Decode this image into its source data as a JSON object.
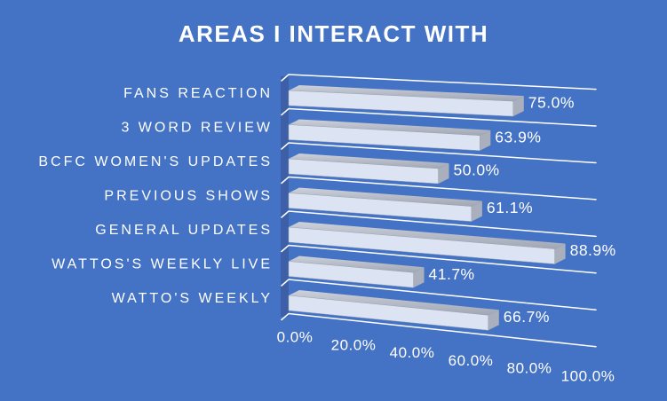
{
  "chart_data": {
    "type": "bar",
    "orientation": "horizontal-3d",
    "title": "AREAS I INTERACT WITH",
    "categories": [
      "FANS REACTION",
      "3 WORD REVIEW",
      "BCFC WOMEN'S UPDATES",
      "PREVIOUS SHOWS",
      "GENERAL UPDATES",
      "WATTOS'S WEEKLY LIVE",
      "WATTO'S WEEKLY"
    ],
    "values": [
      75.0,
      63.9,
      50.0,
      61.1,
      88.9,
      41.7,
      66.7
    ],
    "value_labels": [
      "75.0%",
      "63.9%",
      "50.0%",
      "61.1%",
      "88.9%",
      "41.7%",
      "66.7%"
    ],
    "x_axis": {
      "ticks": [
        "0.0%",
        "20.0%",
        "40.0%",
        "60.0%",
        "80.0%",
        "100.0%"
      ],
      "min": 0,
      "max": 100
    },
    "legend": "none",
    "gridlines": "category",
    "xlabel": "",
    "ylabel": ""
  },
  "colors": {
    "background": "#4472C4",
    "text": "#FFFFFF",
    "gridline": "#FFFFFF",
    "bar_front": "#DCE3F2",
    "bar_edge": "#9BA3B0",
    "bar_top_light": "#CCD1DB",
    "bar_top_dark": "#A0A6B3",
    "bar_side": "#A9AFBC",
    "wall_shadow": "#3C5FA8"
  }
}
